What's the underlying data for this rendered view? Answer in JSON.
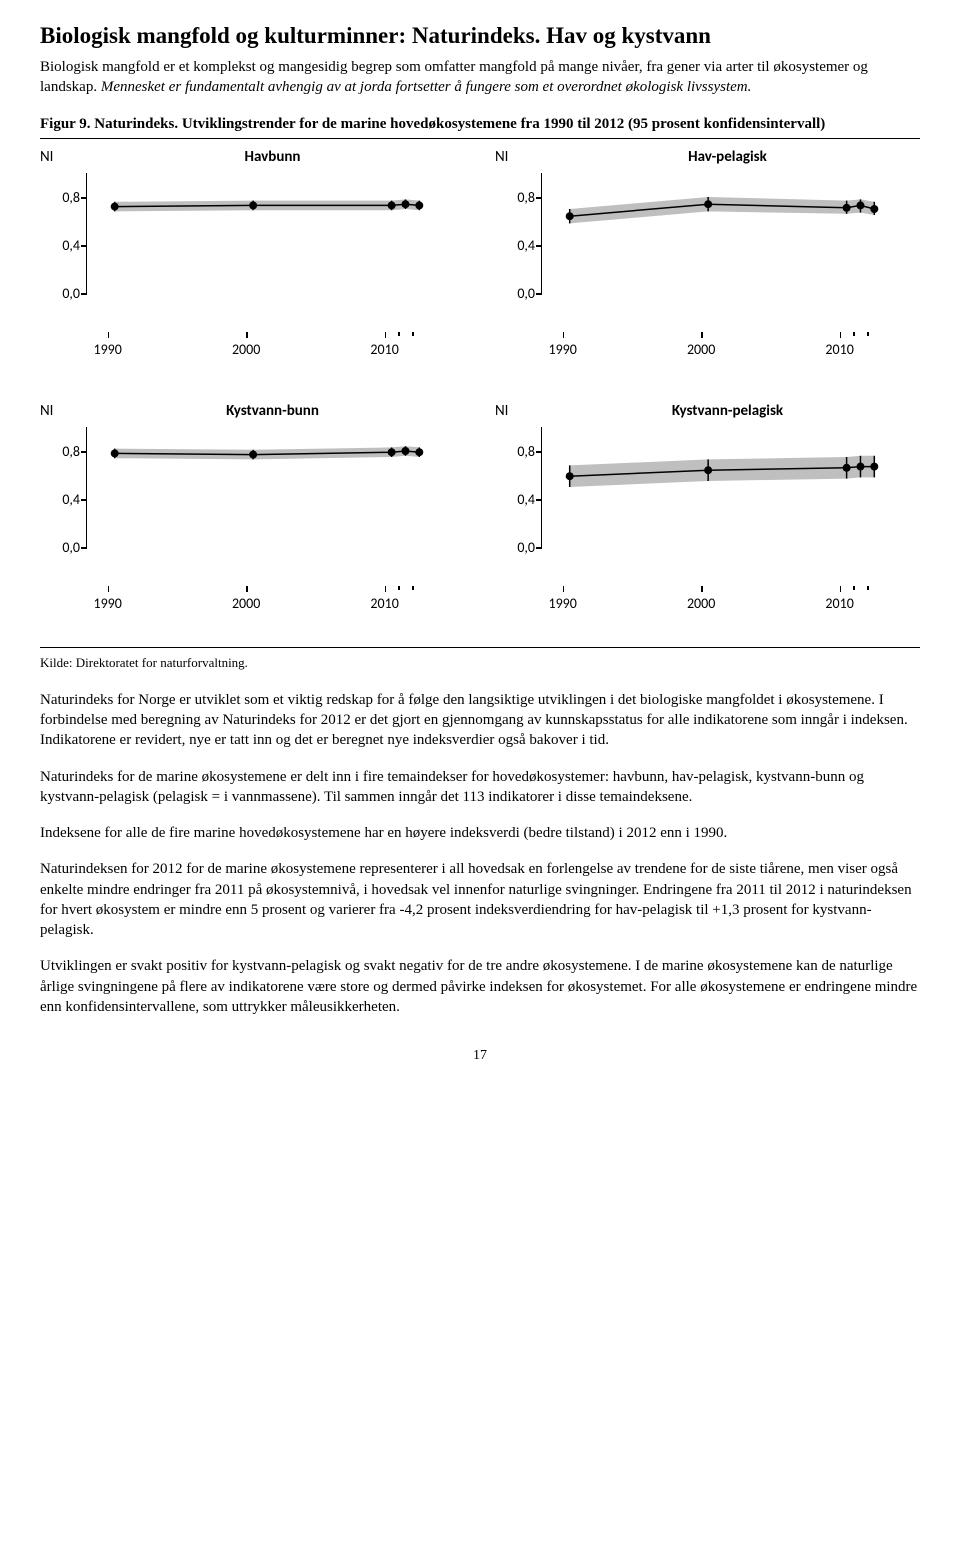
{
  "heading": "Biologisk mangfold og kulturminner: Naturindeks. Hav og kystvann",
  "intro_prefix": "Biologisk mangfold er et komplekst og mangesidig begrep som omfatter mangfold på mange nivåer, fra gener via arter til økosystemer og landskap. ",
  "intro_italic": "Mennesket er fundamentalt avhengig av at jorda fortsetter å fungere som et overordnet økologisk livssystem.",
  "fig_caption": "Figur 9. Naturindeks. Utviklingstrender for de marine hovedøkosystemene fra 1990 til 2012 (95 prosent konfidensintervall)",
  "source": "Kilde: Direktoratet for naturforvaltning.",
  "page_num": "17",
  "paragraphs": [
    "Naturindeks for Norge er utviklet som et viktig redskap for å følge den langsiktige utviklingen i det biologiske mangfoldet i økosystemene. I forbindelse med beregning av Naturindeks for 2012 er det gjort en gjennomgang av kunnskapsstatus for alle indikatorene som inngår i indeksen. Indikatorene er revidert, nye er tatt inn og det er beregnet nye indeksverdier også bakover i tid.",
    "Naturindeks for de marine økosystemene er delt inn i fire temaindekser for hovedøkosystemer: havbunn, hav-pelagisk, kystvann-bunn og kystvann-pelagisk (pelagisk = i vannmassene). Til sammen inngår det 113 indikatorer i disse temaindeksene.",
    "Indeksene for alle de fire marine hovedøkosystemene har en høyere indeksverdi (bedre tilstand) i 2012 enn i 1990.",
    "Naturindeksen for 2012 for de marine økosystemene representerer i all hovedsak en forlengelse av trendene for de siste tiårene, men viser også enkelte mindre endringer fra 2011 på økosystemnivå, i hovedsak vel innenfor naturlige svingninger. Endringene fra 2011 til 2012 i naturindeksen for hvert økosystem er mindre enn 5 prosent og varierer fra -4,2 prosent indeksverdiendring for hav-pelagisk til +1,3 prosent for kystvann-pelagisk.",
    "Utviklingen er svakt positiv for kystvann-pelagisk og svakt negativ for de tre andre økosystemene. I de marine økosystemene kan de naturlige årlige svingningene på flere av indikatorene være store og dermed påvirke indeksen for økosystemet. For alle økosystemene er endringene mindre enn konfidensintervallene, som uttrykker måleusikkerheten."
  ],
  "charts": [
    {
      "id": "havbunn",
      "y_label": "NI",
      "title": "Havbunn",
      "y_ticks": [
        "0,8",
        "0,4",
        "0,0"
      ],
      "x_ticks": [
        "1990",
        "2000",
        "2010"
      ],
      "x_years": [
        1990,
        2000,
        2010,
        2011,
        2012
      ],
      "values": [
        0.72,
        0.73,
        0.73,
        0.74,
        0.73
      ],
      "ci_lo": [
        0.68,
        0.69,
        0.69,
        0.7,
        0.69
      ],
      "ci_hi": [
        0.76,
        0.77,
        0.77,
        0.78,
        0.77
      ],
      "x_domain": [
        1988,
        2014
      ],
      "y_domain": [
        0.0,
        1.0
      ],
      "band_color": "#bfbfbf",
      "point_color": "#000000"
    },
    {
      "id": "hav-pelagisk",
      "y_label": "NI",
      "title": "Hav-pelagisk",
      "y_ticks": [
        "0,8",
        "0,4",
        "0,0"
      ],
      "x_ticks": [
        "1990",
        "2000",
        "2010"
      ],
      "x_years": [
        1990,
        2000,
        2010,
        2011,
        2012
      ],
      "values": [
        0.64,
        0.74,
        0.71,
        0.73,
        0.7
      ],
      "ci_lo": [
        0.58,
        0.68,
        0.66,
        0.67,
        0.65
      ],
      "ci_hi": [
        0.7,
        0.8,
        0.77,
        0.78,
        0.76
      ],
      "x_domain": [
        1988,
        2014
      ],
      "y_domain": [
        0.0,
        1.0
      ],
      "band_color": "#bfbfbf",
      "point_color": "#000000"
    },
    {
      "id": "kystvann-bunn",
      "y_label": "NI",
      "title": "Kystvann-bunn",
      "y_ticks": [
        "0,8",
        "0,4",
        "0,0"
      ],
      "x_ticks": [
        "1990",
        "2000",
        "2010"
      ],
      "x_years": [
        1990,
        2000,
        2010,
        2011,
        2012
      ],
      "values": [
        0.78,
        0.77,
        0.79,
        0.8,
        0.79
      ],
      "ci_lo": [
        0.74,
        0.73,
        0.75,
        0.76,
        0.75
      ],
      "ci_hi": [
        0.82,
        0.81,
        0.83,
        0.84,
        0.83
      ],
      "x_domain": [
        1988,
        2014
      ],
      "y_domain": [
        0.0,
        1.0
      ],
      "band_color": "#bfbfbf",
      "point_color": "#000000"
    },
    {
      "id": "kystvann-pelagisk",
      "y_label": "NI",
      "title": "Kystvann-pelagisk",
      "y_ticks": [
        "0,8",
        "0,4",
        "0,0"
      ],
      "x_ticks": [
        "1990",
        "2000",
        "2010"
      ],
      "x_years": [
        1990,
        2000,
        2010,
        2011,
        2012
      ],
      "values": [
        0.59,
        0.64,
        0.66,
        0.67,
        0.67
      ],
      "ci_lo": [
        0.5,
        0.55,
        0.57,
        0.58,
        0.58
      ],
      "ci_hi": [
        0.68,
        0.73,
        0.75,
        0.76,
        0.76
      ],
      "x_domain": [
        1988,
        2014
      ],
      "y_domain": [
        0.0,
        1.0
      ],
      "band_color": "#bfbfbf",
      "point_color": "#000000"
    }
  ]
}
